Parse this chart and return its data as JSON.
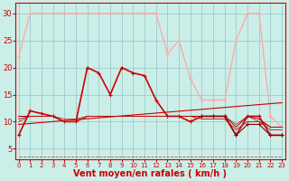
{
  "bg_color": "#cceee8",
  "grid_color": "#99cccc",
  "xlabel": "Vent moyen/en rafales ( km/h )",
  "xlabel_color": "#cc0000",
  "xlabel_fontsize": 7,
  "ytick_labels": [
    "5",
    "10",
    "15",
    "20",
    "25",
    "30"
  ],
  "ytick_vals": [
    5,
    10,
    15,
    20,
    25,
    30
  ],
  "xtick_vals": [
    0,
    1,
    2,
    3,
    4,
    5,
    6,
    7,
    8,
    9,
    10,
    11,
    12,
    13,
    14,
    15,
    16,
    17,
    18,
    19,
    20,
    21,
    22,
    23
  ],
  "ylim": [
    3,
    32
  ],
  "xlim": [
    0,
    23
  ],
  "series": [
    {
      "name": "gust_pink",
      "x": [
        0,
        1,
        2,
        3,
        4,
        5,
        6,
        7,
        8,
        9,
        10,
        11,
        12,
        13,
        14,
        15,
        16,
        17,
        18,
        19,
        20,
        21,
        22,
        23
      ],
      "y": [
        22,
        30,
        30,
        30,
        30,
        30,
        30,
        30,
        30,
        30,
        30,
        30,
        30,
        22.5,
        25,
        18,
        14,
        14,
        14,
        25,
        30,
        30,
        11,
        9
      ],
      "color": "#ffaaaa",
      "lw": 1.0,
      "marker": "+",
      "ms": 3
    },
    {
      "name": "wind_red_main",
      "x": [
        0,
        1,
        2,
        3,
        4,
        5,
        6,
        7,
        8,
        9,
        10,
        11,
        12,
        13,
        14,
        15,
        16,
        17,
        18,
        19,
        20,
        21,
        22,
        23
      ],
      "y": [
        7.5,
        12,
        11.5,
        11,
        10,
        10,
        20,
        19,
        15,
        20,
        19,
        18.5,
        14,
        11,
        11,
        10,
        11,
        11,
        11,
        7.5,
        11,
        11,
        7.5,
        7.5
      ],
      "color": "#cc0000",
      "lw": 1.2,
      "marker": "+",
      "ms": 3
    },
    {
      "name": "trend_line",
      "x": [
        0,
        23
      ],
      "y": [
        9.5,
        13.5
      ],
      "color": "#cc0000",
      "lw": 0.8,
      "marker": null,
      "ms": 0
    },
    {
      "name": "flat_cluster1",
      "x": [
        0,
        1,
        2,
        3,
        4,
        5,
        6,
        7,
        8,
        9,
        10,
        11,
        12,
        13,
        14,
        15,
        16,
        17,
        18,
        19,
        20,
        21,
        22,
        23
      ],
      "y": [
        11,
        11,
        11,
        11,
        10,
        10,
        11,
        11,
        11,
        11,
        11,
        11,
        11,
        11,
        11,
        11,
        11,
        11,
        11,
        9,
        11,
        10.5,
        9,
        9
      ],
      "color": "#990000",
      "lw": 0.7,
      "marker": null,
      "ms": 0
    },
    {
      "name": "flat_cluster2",
      "x": [
        0,
        1,
        2,
        3,
        4,
        5,
        6,
        7,
        8,
        9,
        10,
        11,
        12,
        13,
        14,
        15,
        16,
        17,
        18,
        19,
        20,
        21,
        22,
        23
      ],
      "y": [
        10.5,
        11,
        11,
        11,
        10,
        10,
        11,
        11,
        11,
        11,
        11,
        11,
        11,
        11,
        11,
        11,
        10.5,
        10.5,
        10.5,
        8.5,
        10,
        10,
        8.5,
        8.5
      ],
      "color": "#bb2222",
      "lw": 0.7,
      "marker": null,
      "ms": 0
    },
    {
      "name": "flat_cluster3",
      "x": [
        0,
        1,
        2,
        3,
        4,
        5,
        6,
        7,
        8,
        9,
        10,
        11,
        12,
        13,
        14,
        15,
        16,
        17,
        18,
        19,
        20,
        21,
        22,
        23
      ],
      "y": [
        10,
        11,
        11,
        11,
        10.5,
        10.5,
        11,
        11,
        11,
        11,
        11,
        11,
        11,
        11,
        11,
        11,
        11,
        11,
        11,
        9.5,
        11,
        10,
        9,
        9
      ],
      "color": "#cc0000",
      "lw": 0.5,
      "marker": null,
      "ms": 0
    },
    {
      "name": "tail_markers",
      "x": [
        16,
        17,
        18,
        19,
        20,
        21,
        22,
        23
      ],
      "y": [
        11,
        11,
        11,
        7.5,
        9.5,
        9.5,
        7.5,
        7.5
      ],
      "color": "#880000",
      "lw": 0.8,
      "marker": "+",
      "ms": 3
    },
    {
      "name": "dashed_low",
      "x": [
        0,
        23
      ],
      "y": [
        3.5,
        3.5
      ],
      "color": "#ff3333",
      "lw": 0.6,
      "marker": null,
      "ms": 0,
      "linestyle": "--"
    }
  ]
}
